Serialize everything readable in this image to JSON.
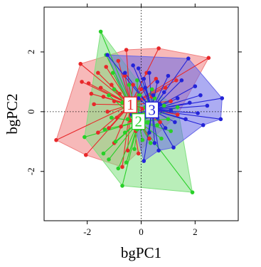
{
  "chart_data": {
    "type": "scatter",
    "xlabel": "bgPC1",
    "ylabel": "bgPC2",
    "xlim": [
      -3.6,
      3.6
    ],
    "ylim": [
      -3.65,
      3.5
    ],
    "x_ticks": [
      -2,
      0,
      2
    ],
    "y_ticks": [
      -2,
      0,
      2
    ],
    "x_tick_labels": [
      "-2",
      "0",
      "2"
    ],
    "y_tick_labels": [
      "-2",
      "0",
      "2"
    ],
    "reference_lines": {
      "x": 0,
      "y": 0,
      "style": "dotted"
    },
    "grid": false,
    "legend": "none",
    "groups": [
      {
        "label": "1",
        "color": "#e8282a",
        "fill": "#f08080",
        "centroid": [
          -0.4,
          0.23
        ],
        "hull": [
          [
            -3.15,
            -0.95
          ],
          [
            -2.25,
            1.6
          ],
          [
            -0.55,
            2.07
          ],
          [
            0.65,
            2.12
          ],
          [
            2.5,
            1.8
          ],
          [
            1.35,
            -0.1
          ],
          [
            -0.7,
            -1.85
          ],
          [
            -2.05,
            -1.45
          ]
        ],
        "points": [
          [
            -3.15,
            -0.95
          ],
          [
            -2.25,
            1.6
          ],
          [
            -0.55,
            2.07
          ],
          [
            0.65,
            2.12
          ],
          [
            2.5,
            1.8
          ],
          [
            1.35,
            -0.1
          ],
          [
            -0.7,
            -1.85
          ],
          [
            -2.05,
            -1.45
          ],
          [
            -2.2,
            1.0
          ],
          [
            -1.95,
            0.95
          ],
          [
            -1.85,
            0.6
          ],
          [
            -1.6,
            1.3
          ],
          [
            -1.5,
            0.8
          ],
          [
            -1.4,
            0.5
          ],
          [
            -1.3,
            1.5
          ],
          [
            -1.25,
            0.0
          ],
          [
            -1.2,
            -0.55
          ],
          [
            -1.1,
            0.9
          ],
          [
            -1.0,
            0.35
          ],
          [
            -1.0,
            -1.05
          ],
          [
            -0.9,
            -0.2
          ],
          [
            -0.85,
            1.7
          ],
          [
            -0.8,
            0.6
          ],
          [
            -0.75,
            -0.5
          ],
          [
            -0.6,
            1.2
          ],
          [
            -0.5,
            -1.3
          ],
          [
            -0.4,
            -0.3
          ],
          [
            -0.3,
            0.9
          ],
          [
            -0.2,
            -0.65
          ],
          [
            -0.1,
            -1.4
          ],
          [
            0.0,
            0.75
          ],
          [
            0.1,
            -0.55
          ],
          [
            0.2,
            1.3
          ],
          [
            0.3,
            -0.9
          ],
          [
            0.4,
            0.5
          ],
          [
            0.55,
            1.1
          ],
          [
            0.7,
            -0.35
          ],
          [
            0.9,
            0.8
          ],
          [
            1.1,
            0.35
          ],
          [
            1.3,
            1.05
          ],
          [
            -1.6,
            -0.7
          ],
          [
            -1.75,
            0.25
          ],
          [
            -0.45,
            0.15
          ],
          [
            0.05,
            0.1
          ]
        ]
      },
      {
        "label": "2",
        "color": "#28d028",
        "fill": "#80e080",
        "centroid": [
          -0.1,
          -0.33
        ],
        "hull": [
          [
            -1.5,
            2.68
          ],
          [
            -0.15,
            1.05
          ],
          [
            1.35,
            0.15
          ],
          [
            1.9,
            -2.7
          ],
          [
            -0.7,
            -2.48
          ],
          [
            -2.1,
            -0.85
          ]
        ],
        "points": [
          [
            -1.5,
            2.68
          ],
          [
            -0.15,
            1.05
          ],
          [
            1.35,
            0.15
          ],
          [
            1.9,
            -2.7
          ],
          [
            -0.7,
            -2.48
          ],
          [
            -2.1,
            -0.85
          ],
          [
            -1.3,
            1.9
          ],
          [
            -1.2,
            0.55
          ],
          [
            -1.1,
            -0.2
          ],
          [
            -1.35,
            -0.6
          ],
          [
            -1.4,
            -1.4
          ],
          [
            -1.2,
            -1.6
          ],
          [
            -1.0,
            0.75
          ],
          [
            -0.95,
            -1.0
          ],
          [
            -0.85,
            -1.9
          ],
          [
            -0.7,
            0.3
          ],
          [
            -0.6,
            -0.7
          ],
          [
            -0.55,
            -1.7
          ],
          [
            -0.45,
            0.9
          ],
          [
            -0.35,
            -0.15
          ],
          [
            -0.25,
            -1.25
          ],
          [
            -0.15,
            -0.6
          ],
          [
            -0.05,
            0.55
          ],
          [
            0.05,
            -0.95
          ],
          [
            0.15,
            0.15
          ],
          [
            0.25,
            -0.35
          ],
          [
            0.35,
            -1.05
          ],
          [
            0.5,
            0.45
          ],
          [
            0.6,
            -0.45
          ],
          [
            0.75,
            -0.9
          ],
          [
            0.85,
            0.2
          ],
          [
            1.0,
            -0.25
          ],
          [
            1.1,
            -0.65
          ],
          [
            -1.05,
            1.3
          ],
          [
            -0.5,
            -0.25
          ],
          [
            0.4,
            0.75
          ]
        ]
      },
      {
        "label": "3",
        "color": "#2424d8",
        "fill": "#6868e8",
        "centroid": [
          0.4,
          0.06
        ],
        "hull": [
          [
            -1.25,
            1.9
          ],
          [
            1.75,
            1.78
          ],
          [
            3.0,
            0.45
          ],
          [
            2.95,
            -0.25
          ],
          [
            2.3,
            -0.45
          ],
          [
            1.2,
            -1.2
          ],
          [
            0.65,
            -1.3
          ],
          [
            0.1,
            -1.65
          ],
          [
            -0.35,
            -0.1
          ]
        ],
        "points": [
          [
            -1.25,
            1.9
          ],
          [
            1.75,
            1.78
          ],
          [
            3.0,
            0.45
          ],
          [
            2.95,
            -0.25
          ],
          [
            2.3,
            -0.45
          ],
          [
            1.2,
            -1.2
          ],
          [
            0.65,
            -1.3
          ],
          [
            0.1,
            -1.65
          ],
          [
            -0.35,
            -0.1
          ],
          [
            -0.6,
            1.3
          ],
          [
            -0.3,
            1.55
          ],
          [
            -0.1,
            1.45
          ],
          [
            0.1,
            1.1
          ],
          [
            0.15,
            0.8
          ],
          [
            0.3,
            1.3
          ],
          [
            0.45,
            0.55
          ],
          [
            0.6,
            1.0
          ],
          [
            0.7,
            0.25
          ],
          [
            0.85,
            0.65
          ],
          [
            1.0,
            1.2
          ],
          [
            1.1,
            0.05
          ],
          [
            1.25,
            -0.35
          ],
          [
            1.35,
            0.45
          ],
          [
            1.5,
            1.05
          ],
          [
            1.65,
            -0.25
          ],
          [
            1.8,
            0.3
          ],
          [
            2.0,
            0.85
          ],
          [
            2.1,
            -0.05
          ],
          [
            2.2,
            0.55
          ],
          [
            2.45,
            0.2
          ],
          [
            0.0,
            -0.45
          ],
          [
            0.3,
            -0.7
          ],
          [
            0.6,
            -0.2
          ],
          [
            0.9,
            -0.55
          ],
          [
            0.25,
            0.2
          ],
          [
            -0.1,
            0.45
          ],
          [
            0.5,
            -1.05
          ]
        ]
      }
    ]
  }
}
